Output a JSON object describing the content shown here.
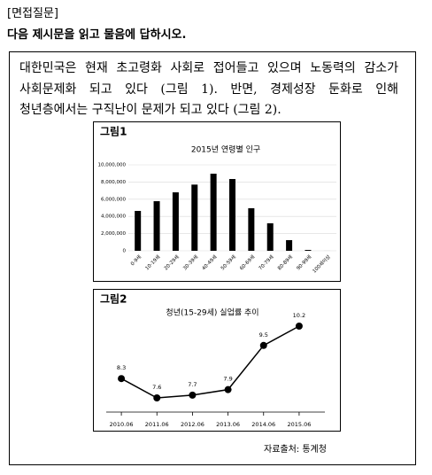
{
  "header": {
    "label": "[면접질문]",
    "instruction": "다음 제시문을 읽고 물음에 답하시오."
  },
  "passage": {
    "lines": [
      "대한민국은 현재 초고령화 사회로 접어들고 있으며 노동력의 감소가",
      "사회문제화 되고 있다 (그림 1). 반면, 경제성장 둔화로 인해",
      "청년층에서는 구직난이 문제가 되고 있다 (그림 2)."
    ]
  },
  "figures": [
    {
      "label": "그림1",
      "chart": {
        "type": "bar",
        "title": "2015년 연령별 인구",
        "categories": [
          "0-9세",
          "10-19세",
          "20-29세",
          "30-39세",
          "40-49세",
          "50-59세",
          "60-69세",
          "70-79세",
          "80-89세",
          "90-99세",
          "100세이상"
        ],
        "values": [
          4640000,
          5770000,
          6800000,
          7700000,
          8970000,
          8350000,
          4950000,
          3200000,
          1240000,
          100000,
          3000
        ],
        "color": "#000000",
        "ylim": [
          0,
          10000000
        ],
        "yticks": [
          0,
          {
            "value": 2000000,
            "label": "2,000,000"
          },
          {
            "value": 4000000,
            "label": "4,000,000"
          },
          {
            "value": 6000000,
            "label": "6,000,000"
          },
          {
            "value": 8000000,
            "label": "8,000,000"
          },
          {
            "value": 10000000,
            "label": "10,000,000"
          }
        ]
      }
    },
    {
      "label": "그림2",
      "chart": {
        "type": "line",
        "title": "청년(15-29세) 실업률 추이",
        "categories": [
          "2010.06",
          "2011.06",
          "2012.06",
          "2013.06",
          "2014.06",
          "2015.06"
        ],
        "values": [
          8.3,
          7.6,
          7.7,
          7.9,
          9.5,
          10.2
        ],
        "color": "#000000"
      }
    }
  ],
  "source": "자료출처: 통계청"
}
